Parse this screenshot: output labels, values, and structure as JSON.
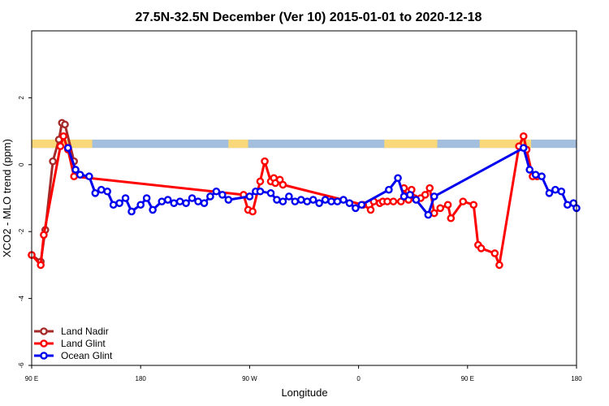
{
  "chart_data": {
    "type": "line",
    "title": "27.5N-32.5N December (Ver 10)   2015-01-01 to 2020-12-18",
    "xlabel": "Longitude",
    "ylabel": "XCO2 - MLO trend (ppm)",
    "xlim": [
      90,
      450
    ],
    "ylim": [
      -6,
      4
    ],
    "grid": false,
    "legend": "bottom-left",
    "xticks": [
      {
        "value": 90,
        "label": "90 E"
      },
      {
        "value": 162,
        "label": "180"
      },
      {
        "value": 234,
        "label": "90 W"
      },
      {
        "value": 306,
        "label": "0"
      },
      {
        "value": 378,
        "label": "90 E"
      },
      {
        "value": 450,
        "label": "180"
      }
    ],
    "yticks": [
      {
        "value": 2,
        "label": "2"
      },
      {
        "value": 0,
        "label": "0"
      },
      {
        "value": -2,
        "label": "-2"
      },
      {
        "value": -4,
        "label": "-4"
      },
      {
        "value": -6,
        "label": "-6"
      }
    ],
    "surface_strip": {
      "y_range": [
        0.5,
        0.75
      ],
      "colors": {
        "land": "#f8d878",
        "ocean": "#a4bede"
      },
      "land_segments": [
        [
          90,
          130
        ],
        [
          220,
          233
        ],
        [
          323,
          358
        ],
        [
          386,
          420
        ]
      ]
    },
    "series": [
      {
        "name": "Land Nadir",
        "color": "#a52a2a",
        "x": [
          90,
          96,
          99,
          104,
          108,
          110,
          112,
          118
        ],
        "y": [
          -2.7,
          -2.9,
          -1.95,
          0.1,
          0.75,
          1.25,
          1.2,
          0.1
        ]
      },
      {
        "name": "Land Glint",
        "color": "#ff0000",
        "x": [
          90,
          96,
          98,
          109,
          111,
          114,
          118,
          230,
          233,
          236,
          241,
          244,
          248,
          250,
          251,
          254,
          256,
          309,
          314,
          316,
          320,
          322,
          325,
          329,
          334,
          336,
          339,
          341,
          343,
          347,
          350,
          353,
          356,
          360,
          365,
          367,
          375,
          382,
          385,
          387,
          396,
          399,
          412,
          415,
          417,
          421,
          424
        ],
        "y": [
          -2.7,
          -3.0,
          -2.1,
          0.55,
          0.85,
          0.45,
          -0.35,
          -0.9,
          -1.35,
          -1.4,
          -0.5,
          0.1,
          -0.5,
          -0.4,
          -0.55,
          -0.45,
          -0.6,
          -1.2,
          -1.35,
          -1.1,
          -1.15,
          -1.1,
          -1.1,
          -1.1,
          -1.1,
          -0.7,
          -1.05,
          -0.75,
          -1.0,
          -1.0,
          -0.9,
          -0.7,
          -1.45,
          -1.3,
          -1.2,
          -1.6,
          -1.1,
          -1.2,
          -2.4,
          -2.5,
          -2.65,
          -3.0,
          0.55,
          0.85,
          0.45,
          -0.35,
          -0.35
        ]
      },
      {
        "name": "Ocean Glint",
        "color": "#0000ee",
        "x": [
          114,
          119,
          122,
          128,
          132,
          136,
          140,
          144,
          148,
          152,
          156,
          162,
          166,
          170,
          176,
          180,
          184,
          188,
          192,
          196,
          200,
          204,
          208,
          212,
          216,
          220,
          234,
          238,
          241,
          248,
          252,
          256,
          260,
          264,
          268,
          272,
          276,
          280,
          284,
          288,
          292,
          296,
          300,
          304,
          308,
          326,
          332,
          336,
          340,
          344,
          352,
          356,
          415,
          419,
          423,
          427,
          432,
          436,
          440,
          444,
          448,
          450
        ],
        "y": [
          0.5,
          -0.15,
          -0.3,
          -0.35,
          -0.85,
          -0.75,
          -0.8,
          -1.2,
          -1.15,
          -1.0,
          -1.4,
          -1.2,
          -1.0,
          -1.35,
          -1.1,
          -1.05,
          -1.15,
          -1.1,
          -1.15,
          -1.0,
          -1.1,
          -1.15,
          -0.95,
          -0.8,
          -0.9,
          -1.05,
          -0.95,
          -0.8,
          -0.8,
          -0.85,
          -1.05,
          -1.1,
          -0.95,
          -1.1,
          -1.05,
          -1.1,
          -1.05,
          -1.15,
          -1.05,
          -1.1,
          -1.1,
          -1.05,
          -1.15,
          -1.3,
          -1.2,
          -0.75,
          -0.4,
          -0.95,
          -0.9,
          -1.05,
          -1.5,
          -0.95,
          0.5,
          -0.15,
          -0.3,
          -0.35,
          -0.85,
          -0.75,
          -0.8,
          -1.2,
          -1.15,
          -1.3
        ]
      }
    ]
  }
}
